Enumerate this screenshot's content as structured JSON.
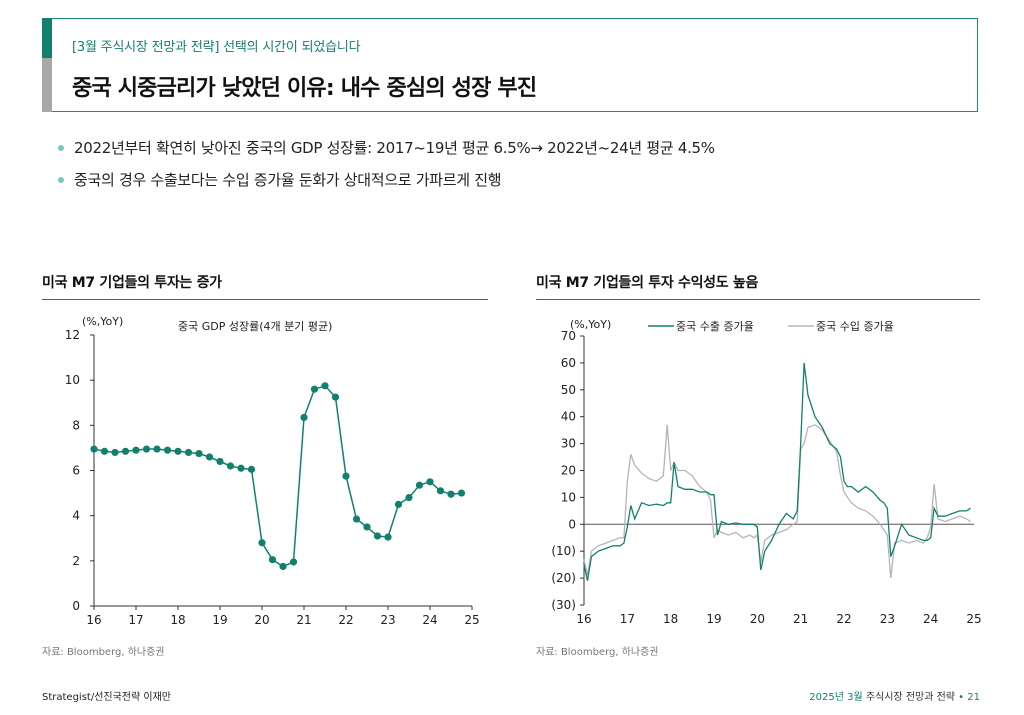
{
  "header": {
    "subtitle": "[3월 주식시장 전망과 전략] 선택의 시간이 되었습니다",
    "title": "중국 시중금리가 낮았던 이유: 내수 중심의 성장 부진"
  },
  "bullets": [
    "2022년부터 확연히 낮아진 중국의 GDP 성장률: 2017~19년 평균 6.5%→ 2022년~24년 평균 4.5%",
    "중국의 경우 수출보다는 수입 증가율 둔화가 상대적으로 가파르게 진행"
  ],
  "charts": {
    "left_title": "미국 M7 기업들의 투자는 증가",
    "right_title": "미국 M7 기업들의 투자 수익성도 높음",
    "left_source": "자료: Bloomberg, 하나증권",
    "right_source": "자료: Bloomberg, 하나증권"
  },
  "footer": {
    "left": "Strategist/선진국전략 이재만",
    "right_accent": "2025년 3월",
    "right_text": " 주식시장 전망과 전략",
    "bullet": " • ",
    "page": "21"
  },
  "colors": {
    "accent": "#12806f",
    "gray": "#b5b5b5",
    "bullet": "#7ec6c0"
  },
  "chart_data": [
    {
      "type": "line",
      "unit": "(%,YoY)",
      "xlim": [
        16,
        25
      ],
      "ylim": [
        0,
        12
      ],
      "xticks": [
        "16",
        "17",
        "18",
        "19",
        "20",
        "21",
        "22",
        "23",
        "24",
        "25"
      ],
      "yticks": [
        "0",
        "2",
        "4",
        "6",
        "8",
        "10",
        "12"
      ],
      "series": [
        {
          "name": "중국 GDP 성장률(4개 분기 평균)",
          "color": "#12806f",
          "x": [
            16,
            16.25,
            16.5,
            16.75,
            17,
            17.25,
            17.5,
            17.75,
            18,
            18.25,
            18.5,
            18.75,
            19,
            19.25,
            19.5,
            19.75,
            20,
            20.25,
            20.5,
            20.75,
            21,
            21.25,
            21.5,
            21.75,
            22,
            22.25,
            22.5,
            22.75,
            23,
            23.25,
            23.5,
            23.75,
            24,
            24.25,
            24.5,
            24.75
          ],
          "y": [
            6.95,
            6.85,
            6.8,
            6.85,
            6.9,
            6.95,
            6.95,
            6.9,
            6.85,
            6.8,
            6.75,
            6.6,
            6.4,
            6.2,
            6.1,
            6.05,
            2.8,
            2.05,
            1.75,
            1.95,
            8.35,
            9.6,
            9.75,
            9.25,
            5.75,
            3.85,
            3.5,
            3.1,
            3.05,
            4.5,
            4.8,
            5.35,
            5.5,
            5.1,
            4.95,
            5.0
          ]
        }
      ]
    },
    {
      "type": "line",
      "unit": "(%,YoY)",
      "xlim": [
        16,
        25
      ],
      "ylim": [
        -30,
        70
      ],
      "xticks": [
        "16",
        "17",
        "18",
        "19",
        "20",
        "21",
        "22",
        "23",
        "24",
        "25"
      ],
      "yticks": [
        "70",
        "60",
        "50",
        "40",
        "30",
        "20",
        "10",
        "0",
        "(10)",
        "(20)",
        "(30)"
      ],
      "ytick_values": [
        70,
        60,
        50,
        40,
        30,
        20,
        10,
        0,
        -10,
        -20,
        -30
      ],
      "series": [
        {
          "name": "중국 수출 증가율",
          "color": "#12806f",
          "x": [
            16,
            16.08,
            16.17,
            16.33,
            16.5,
            16.67,
            16.83,
            16.92,
            17,
            17.08,
            17.17,
            17.33,
            17.5,
            17.67,
            17.83,
            17.92,
            18,
            18.08,
            18.17,
            18.33,
            18.5,
            18.67,
            18.83,
            18.92,
            19,
            19.08,
            19.17,
            19.33,
            19.5,
            19.67,
            19.83,
            19.92,
            20,
            20.08,
            20.17,
            20.33,
            20.5,
            20.67,
            20.83,
            20.92,
            21,
            21.08,
            21.17,
            21.33,
            21.5,
            21.67,
            21.83,
            21.92,
            22,
            22.08,
            22.17,
            22.33,
            22.5,
            22.67,
            22.83,
            22.92,
            23,
            23.08,
            23.17,
            23.33,
            23.5,
            23.67,
            23.83,
            23.92,
            24,
            24.08,
            24.17,
            24.33,
            24.5,
            24.67,
            24.83,
            24.92
          ],
          "y": [
            -15,
            -21,
            -12,
            -10,
            -9,
            -8,
            -8,
            -7,
            -1,
            7,
            2,
            8,
            7,
            7.5,
            7,
            8,
            8,
            23,
            14,
            13,
            13,
            12,
            12,
            11,
            11,
            -4,
            1,
            0,
            0.5,
            0,
            0,
            0,
            -1,
            -17,
            -10,
            -6,
            0,
            4,
            2,
            5,
            30,
            60,
            48,
            40,
            36,
            30,
            28,
            25,
            16,
            14,
            14,
            12,
            14,
            12,
            9,
            8,
            6,
            -12,
            -8,
            0,
            -4,
            -5,
            -6,
            -6,
            -5,
            6,
            3,
            3,
            4,
            5,
            5,
            6
          ]
        },
        {
          "name": "중국 수입 증가율",
          "color": "#b5b5b5",
          "x": [
            16,
            16.08,
            16.17,
            16.33,
            16.5,
            16.67,
            16.83,
            16.92,
            17,
            17.08,
            17.17,
            17.33,
            17.5,
            17.67,
            17.83,
            17.92,
            18,
            18.08,
            18.17,
            18.33,
            18.5,
            18.67,
            18.83,
            18.92,
            19,
            19.08,
            19.17,
            19.33,
            19.5,
            19.67,
            19.83,
            19.92,
            20,
            20.08,
            20.17,
            20.33,
            20.5,
            20.67,
            20.83,
            20.92,
            21,
            21.08,
            21.17,
            21.33,
            21.5,
            21.67,
            21.83,
            21.92,
            22,
            22.08,
            22.17,
            22.33,
            22.5,
            22.67,
            22.83,
            22.92,
            23,
            23.08,
            23.17,
            23.33,
            23.5,
            23.67,
            23.83,
            23.92,
            24,
            24.08,
            24.17,
            24.33,
            24.5,
            24.67,
            24.83,
            24.92
          ],
          "y": [
            -13,
            -19,
            -10,
            -8,
            -7,
            -6,
            -5,
            -5,
            16,
            26,
            22,
            19,
            17,
            16,
            18,
            37,
            20,
            23,
            20,
            20,
            18,
            14,
            12,
            9,
            -5,
            -2,
            -3,
            -4,
            -3,
            -5,
            -4,
            -5,
            -4,
            -14,
            -6,
            -4,
            -3,
            -2,
            0,
            1,
            28,
            30,
            36,
            37,
            35,
            31,
            27,
            18,
            12,
            10,
            8,
            6,
            5,
            3,
            0,
            -2,
            -4,
            -20,
            -7,
            -6,
            -7,
            -6,
            -7,
            -5,
            -1,
            15,
            2,
            1,
            2,
            3,
            2,
            1
          ]
        }
      ]
    }
  ]
}
